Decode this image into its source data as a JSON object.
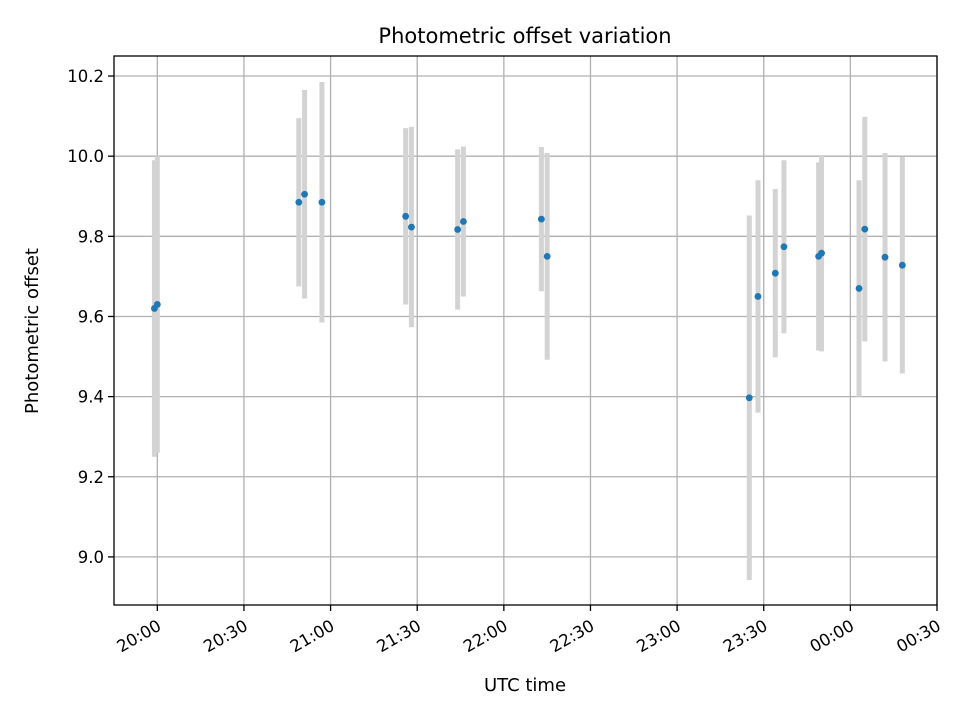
{
  "chart_data": {
    "type": "scatter",
    "title": "Photometric offset variation",
    "xlabel": "UTC time",
    "ylabel": "Photometric offset",
    "x_axis": {
      "kind": "time",
      "reference_date": "",
      "range": [
        "19:45",
        "00:30"
      ],
      "ticks": [
        "20:00",
        "20:30",
        "21:00",
        "21:30",
        "22:00",
        "22:30",
        "23:00",
        "23:30",
        "00:00",
        "00:30"
      ]
    },
    "y_axis": {
      "range": [
        8.88,
        10.25
      ],
      "ticks": [
        "9.0",
        "9.2",
        "9.4",
        "9.6",
        "9.8",
        "10.0",
        "10.2"
      ]
    },
    "grid": true,
    "marker_color": "#1f77b4",
    "errorbar_color": "#d3d3d3",
    "points": [
      {
        "time": "19:59",
        "y": 9.62,
        "err": 0.37
      },
      {
        "time": "20:00",
        "y": 9.63,
        "err": 0.37
      },
      {
        "time": "20:49",
        "y": 9.885,
        "err": 0.21
      },
      {
        "time": "20:51",
        "y": 9.905,
        "err": 0.26
      },
      {
        "time": "20:57",
        "y": 9.885,
        "err": 0.3
      },
      {
        "time": "21:26",
        "y": 9.85,
        "err": 0.22
      },
      {
        "time": "21:28",
        "y": 9.823,
        "err": 0.25
      },
      {
        "time": "21:44",
        "y": 9.817,
        "err": 0.2
      },
      {
        "time": "21:46",
        "y": 9.837,
        "err": 0.187
      },
      {
        "time": "22:13",
        "y": 9.843,
        "err": 0.18
      },
      {
        "time": "22:15",
        "y": 9.75,
        "err": 0.258
      },
      {
        "time": "23:25",
        "y": 9.397,
        "err": 0.455
      },
      {
        "time": "23:28",
        "y": 9.65,
        "err": 0.29
      },
      {
        "time": "23:34",
        "y": 9.708,
        "err": 0.21
      },
      {
        "time": "23:37",
        "y": 9.774,
        "err": 0.216
      },
      {
        "time": "23:49",
        "y": 9.75,
        "err": 0.235
      },
      {
        "time": "23:50",
        "y": 9.758,
        "err": 0.245
      },
      {
        "time": "00:03",
        "y": 9.67,
        "err": 0.27
      },
      {
        "time": "00:05",
        "y": 9.818,
        "err": 0.28
      },
      {
        "time": "00:12",
        "y": 9.748,
        "err": 0.26
      },
      {
        "time": "00:18",
        "y": 9.728,
        "err": 0.27
      }
    ]
  }
}
